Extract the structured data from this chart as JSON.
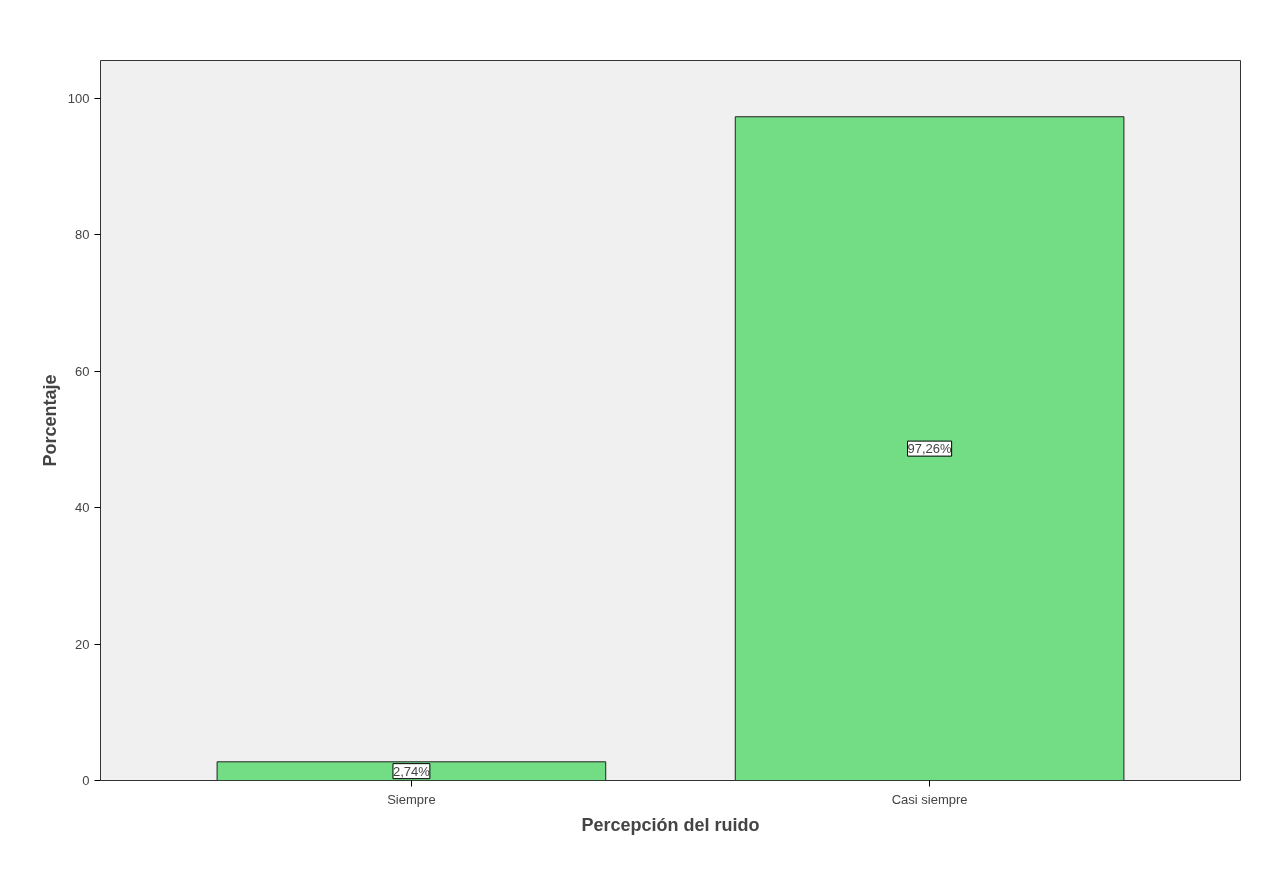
{
  "chart_data": {
    "type": "bar",
    "xlabel": "Percepción del ruido",
    "ylabel": "Porcentaje",
    "categories": [
      "Siempre",
      "Casi siempre"
    ],
    "values": [
      2.74,
      97.26
    ],
    "value_labels": [
      "2,74%",
      "97,26%"
    ],
    "color": "#72dd84",
    "ylim": [
      0,
      105.5
    ],
    "yticks": [
      0,
      20,
      40,
      60,
      80,
      100
    ],
    "grid": false
  }
}
